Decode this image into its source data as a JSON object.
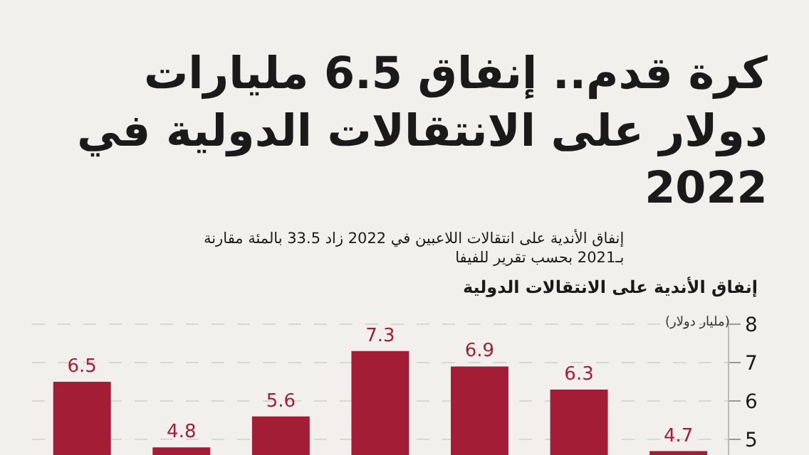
{
  "chart_data": {
    "type": "bar",
    "title": "كرة قدم.. إنفاق 6.5 مليارات\nدولار على الانتقالات الدولية في\n2022",
    "subtitle": "إنفاق الأندية على انتقالات اللاعبين في 2022 زاد 33.5 بالمئة مقارنة\nبـ2021 بحسب تقرير للفيفا",
    "annotations": [
      "إنفاق الأندية على الانتقالات الدولية"
    ],
    "ylabel": "(مليار دولار)",
    "categories": [
      null,
      null,
      null,
      null,
      null,
      null,
      null
    ],
    "values": [
      6.5,
      4.8,
      5.6,
      7.3,
      6.9,
      6.3,
      4.7
    ],
    "color": "#a31d37",
    "data_labels": true,
    "ylim": [
      4.6,
      8.1
    ],
    "yticks": [
      5,
      6,
      7,
      8
    ],
    "grid": "y",
    "tick_labels": "y"
  }
}
